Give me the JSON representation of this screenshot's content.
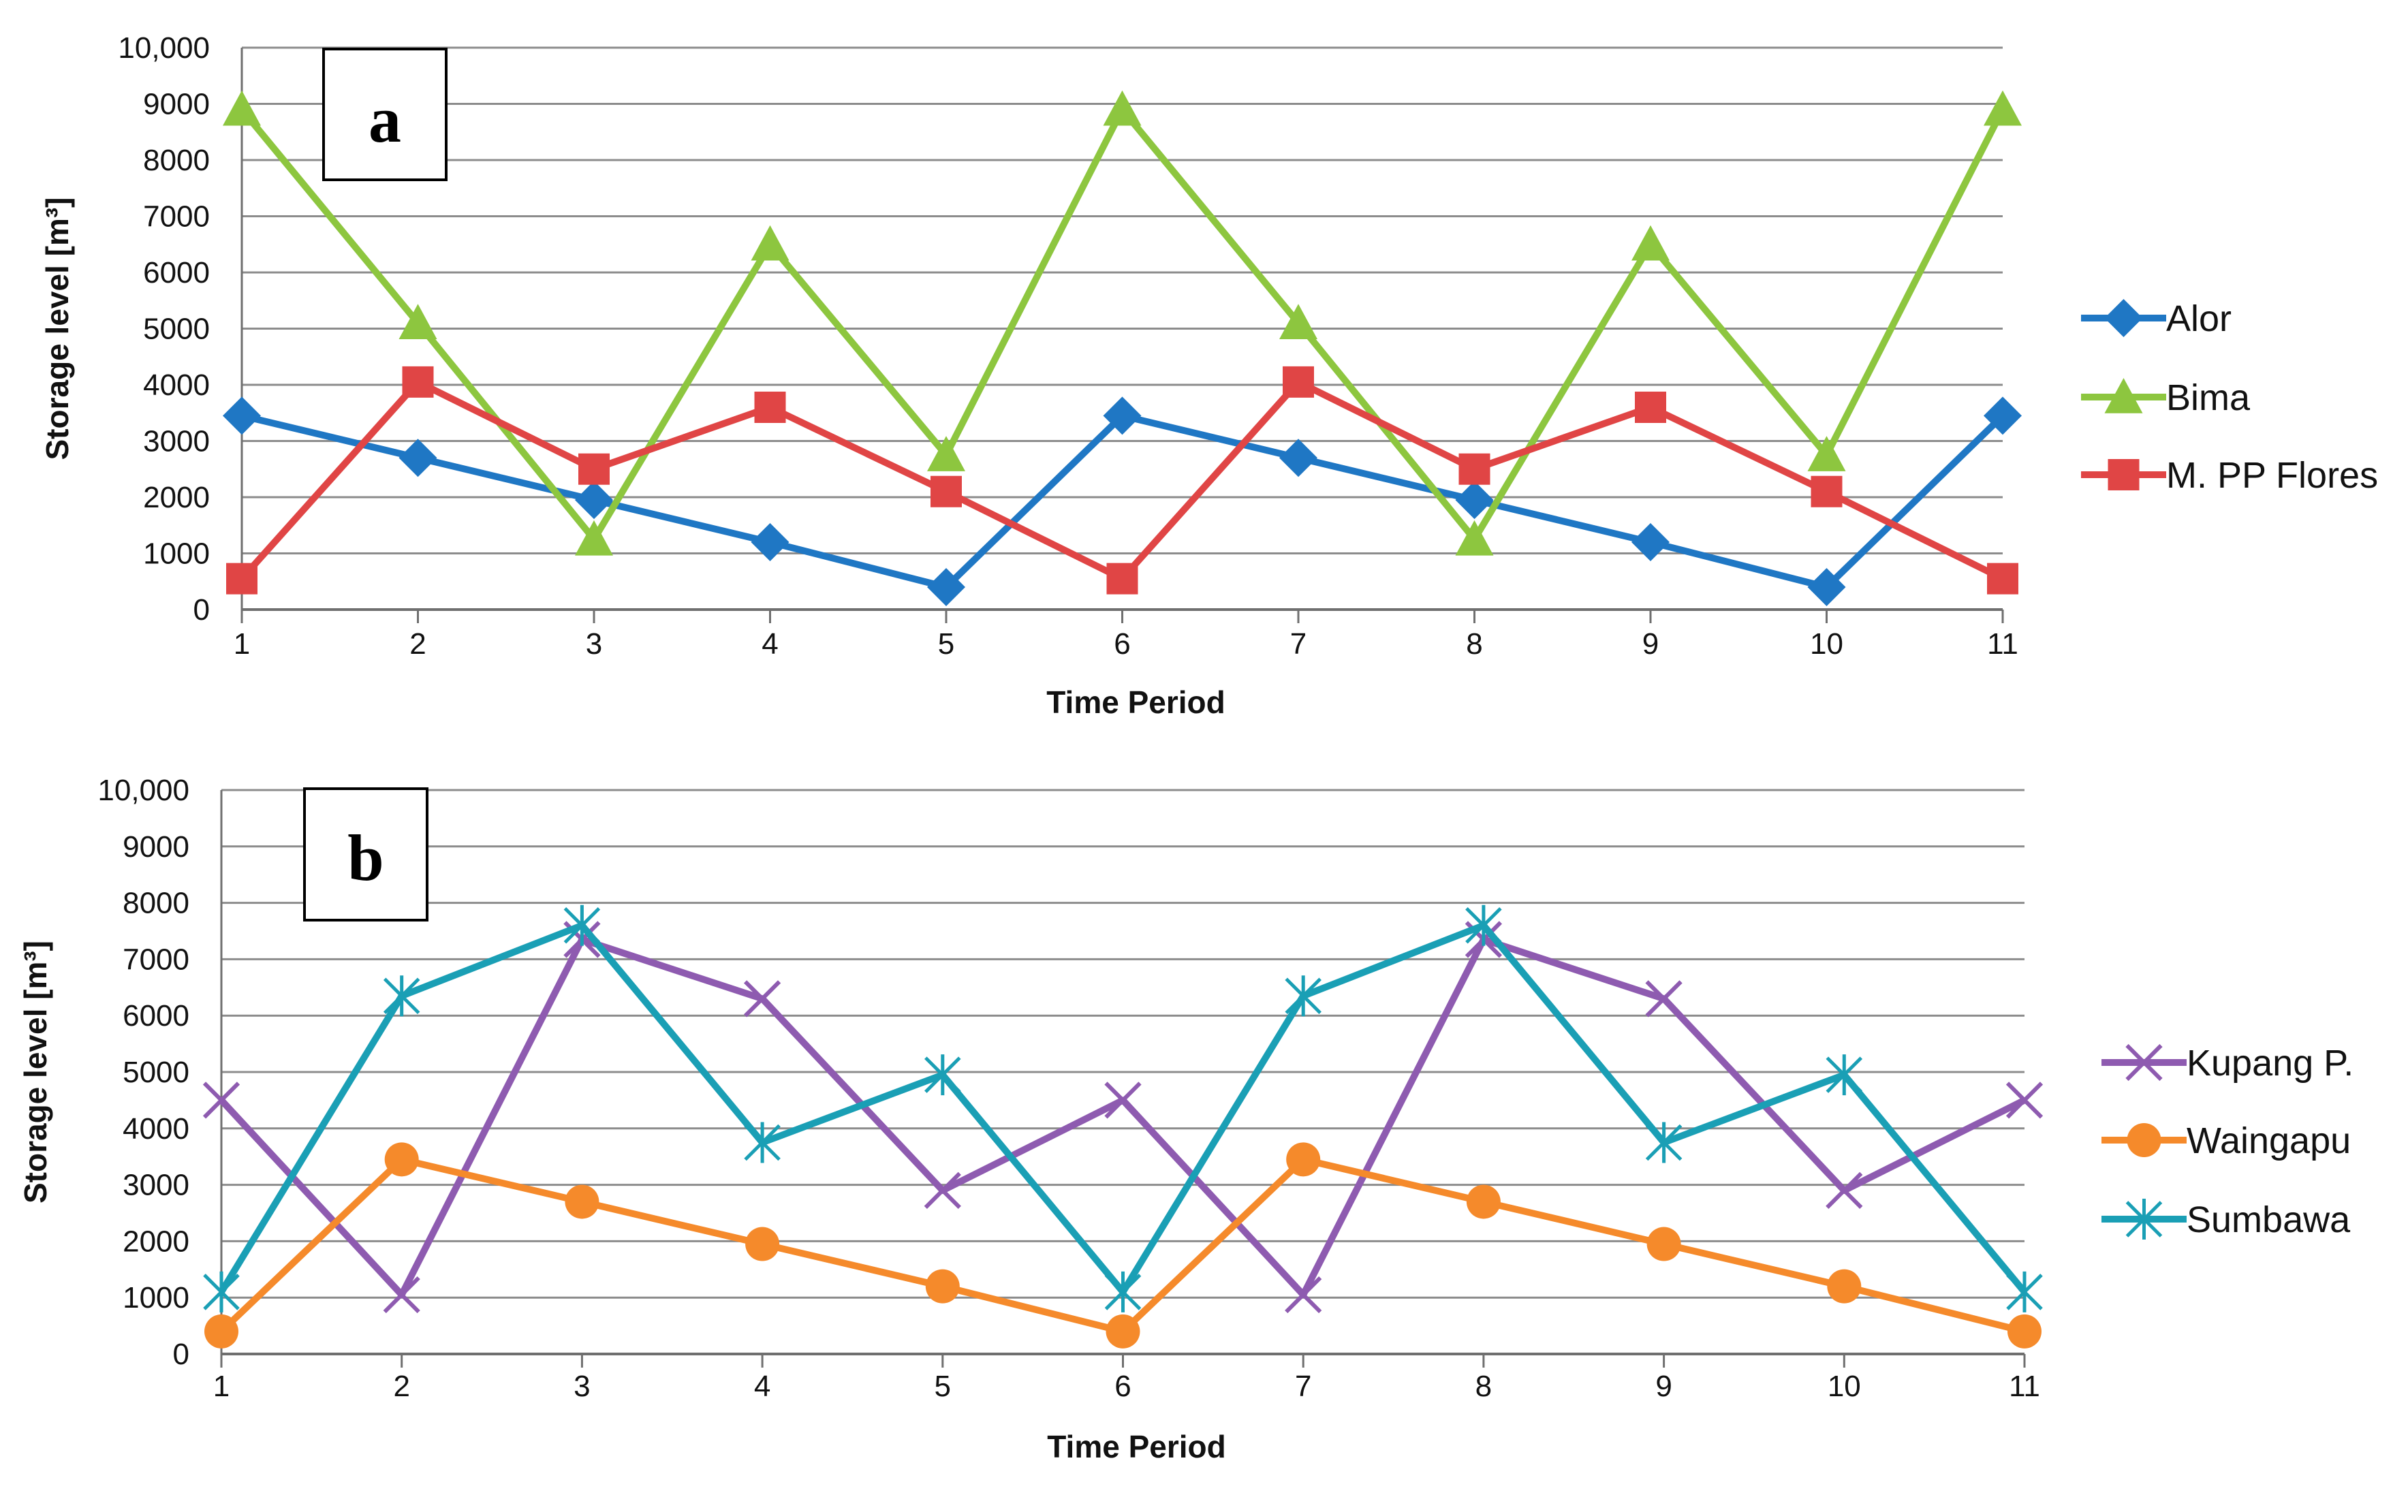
{
  "chart_data": [
    {
      "type": "line",
      "panel_label": "a",
      "title": "",
      "xlabel": "Time Period",
      "ylabel": "Storage level [m³]",
      "categories": [
        "1",
        "2",
        "3",
        "4",
        "5",
        "6",
        "7",
        "8",
        "9",
        "10",
        "11"
      ],
      "ylim": [
        0,
        10000
      ],
      "yticks": [
        "0",
        "1000",
        "2000",
        "3000",
        "4000",
        "5000",
        "6000",
        "7000",
        "8000",
        "9000",
        "10,000"
      ],
      "grid": true,
      "legend_position": "right",
      "series": [
        {
          "name": "Alor",
          "color": "#1f77c4",
          "marker": "diamond",
          "values": [
            3450,
            2700,
            1950,
            1200,
            400,
            3450,
            2700,
            1950,
            1200,
            400,
            3450
          ]
        },
        {
          "name": "Bima",
          "color": "#8dc63f",
          "marker": "triangle",
          "values": [
            8900,
            5100,
            1250,
            6500,
            2750,
            8900,
            5100,
            1250,
            6500,
            2750,
            8900
          ]
        },
        {
          "name": "M. PP Flores",
          "color": "#e04545",
          "marker": "square",
          "values": [
            550,
            4050,
            2500,
            3600,
            2100,
            550,
            4050,
            2500,
            3600,
            2100,
            550
          ]
        }
      ]
    },
    {
      "type": "line",
      "panel_label": "b",
      "title": "",
      "xlabel": "Time Period",
      "ylabel": "Storage level [m³]",
      "categories": [
        "1",
        "2",
        "3",
        "4",
        "5",
        "6",
        "7",
        "8",
        "9",
        "10",
        "11"
      ],
      "ylim": [
        0,
        10000
      ],
      "yticks": [
        "0",
        "1000",
        "2000",
        "3000",
        "4000",
        "5000",
        "6000",
        "7000",
        "8000",
        "9000",
        "10,000"
      ],
      "grid": true,
      "legend_position": "right",
      "series": [
        {
          "name": "Kupang P.",
          "color": "#8e5bb0",
          "marker": "x",
          "values": [
            4500,
            1050,
            7350,
            6300,
            2900,
            4500,
            1050,
            7350,
            6300,
            2900,
            4500
          ]
        },
        {
          "name": "Waingapu",
          "color": "#f58a2b",
          "marker": "circle",
          "values": [
            400,
            3450,
            2700,
            1950,
            1200,
            400,
            3450,
            2700,
            1950,
            1200,
            400
          ]
        },
        {
          "name": "Sumbawa",
          "color": "#1a9fb5",
          "marker": "star",
          "values": [
            1100,
            6350,
            7600,
            3750,
            4950,
            1100,
            6350,
            7600,
            3750,
            4950,
            1100
          ]
        }
      ]
    }
  ]
}
